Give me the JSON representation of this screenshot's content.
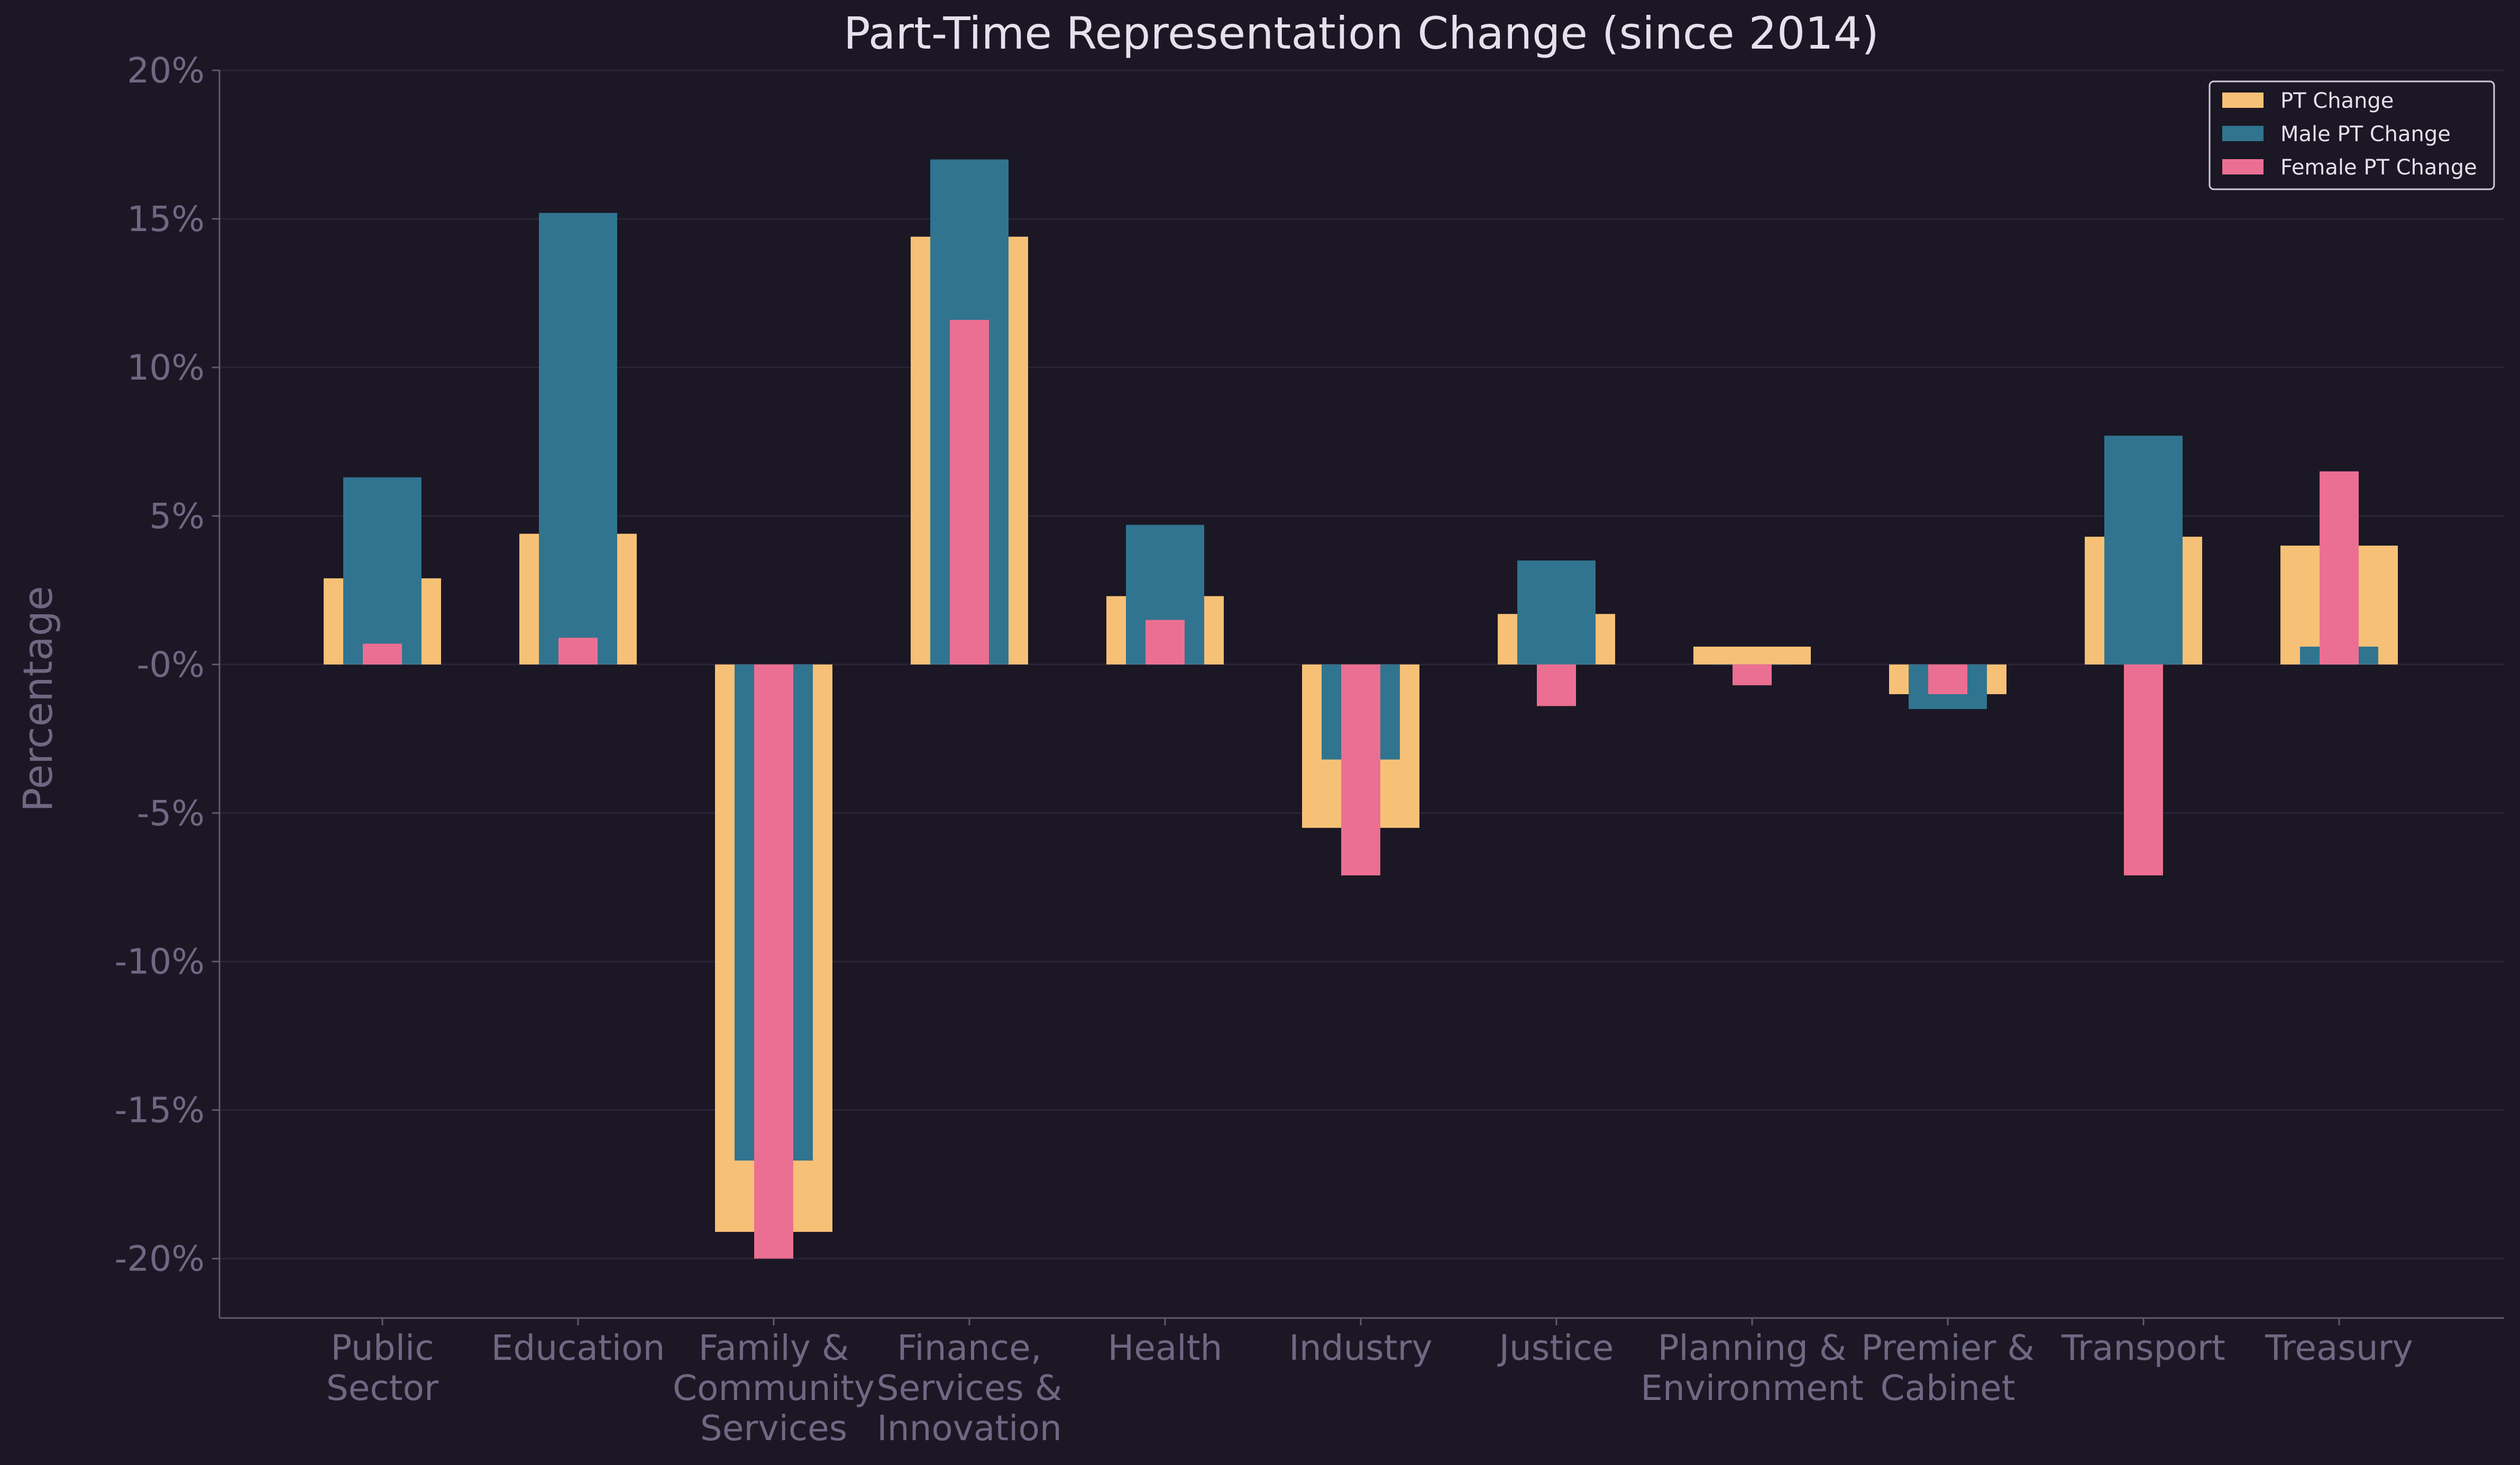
{
  "chart_data": {
    "type": "bar",
    "title": "Part-Time Representation Change (since 2014)",
    "xlabel": "",
    "ylabel": "Percentage",
    "ylim": [
      -22,
      20
    ],
    "yticks": [
      20,
      15,
      10,
      5,
      0,
      -5,
      -10,
      -15,
      -20
    ],
    "ytick_labels": [
      "20%",
      "15%",
      "10%",
      "5%",
      "-0%",
      "-5%",
      "-10%",
      "-15%",
      "-20%"
    ],
    "grid": true,
    "legend_position": "top-right",
    "categories": [
      [
        "Public",
        "Sector"
      ],
      [
        "Education"
      ],
      [
        "Family &",
        "Community",
        "Services"
      ],
      [
        "Finance,",
        "Services &",
        "Innovation"
      ],
      [
        "Health"
      ],
      [
        "Industry"
      ],
      [
        "Justice"
      ],
      [
        "Planning &",
        "Environment"
      ],
      [
        "Premier &",
        "Cabinet"
      ],
      [
        "Transport"
      ],
      [
        "Treasury"
      ]
    ],
    "series": [
      {
        "name": "PT Change",
        "color": "#f6c177",
        "values": [
          2.9,
          4.4,
          -19.1,
          14.4,
          2.3,
          -5.5,
          1.7,
          0.6,
          -1.0,
          4.3,
          4.0
        ]
      },
      {
        "name": "Male PT Change",
        "color": "#31748f",
        "values": [
          6.3,
          15.2,
          -16.7,
          17.0,
          4.7,
          -3.2,
          3.5,
          0.0,
          -1.5,
          7.7,
          0.6
        ]
      },
      {
        "name": "Female PT Change",
        "color": "#eb6f92",
        "values": [
          0.7,
          0.9,
          -20.0,
          11.6,
          1.5,
          -7.1,
          -1.4,
          -0.7,
          -1.0,
          -7.1,
          6.5
        ]
      }
    ]
  },
  "colors": {
    "background": "#1b1725",
    "grid": "#2a2536",
    "axis": "#5f5a70",
    "text_muted": "#6e6882",
    "text_light": "#e4e1ec"
  }
}
